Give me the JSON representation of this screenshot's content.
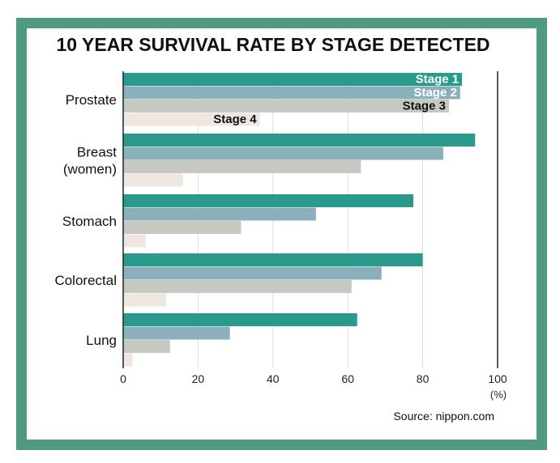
{
  "colors": {
    "border": "#4f9a80",
    "stage1": "#2a9a8c",
    "stage2": "#8ab0bb",
    "stage3": "#c6c9c1",
    "stage4": "#efe7df",
    "axis": "#222222",
    "grid": "#dddddd"
  },
  "chart_data": {
    "type": "bar",
    "orientation": "horizontal",
    "title": "10 YEAR SURVIVAL RATE BY STAGE DETECTED",
    "categories": [
      {
        "lines": [
          "Prostate"
        ]
      },
      {
        "lines": [
          "Breast",
          "(women)"
        ]
      },
      {
        "lines": [
          "Stomach"
        ]
      },
      {
        "lines": [
          "Colorectal"
        ]
      },
      {
        "lines": [
          "Lung"
        ]
      }
    ],
    "series": [
      {
        "name": "Stage 1",
        "values": [
          90.5,
          94.0,
          77.5,
          80.0,
          62.5
        ]
      },
      {
        "name": "Stage 2",
        "values": [
          90.0,
          85.5,
          51.5,
          69.0,
          28.5
        ]
      },
      {
        "name": "Stage 3",
        "values": [
          87.0,
          63.5,
          31.5,
          61.0,
          12.5
        ]
      },
      {
        "name": "Stage 4",
        "values": [
          36.5,
          16.0,
          6.0,
          11.5,
          2.5
        ]
      }
    ],
    "series_labels": [
      "Stage 1",
      "Stage 2",
      "Stage 3",
      "Stage 4"
    ],
    "xlim": [
      0,
      100
    ],
    "xticks": [
      0,
      20,
      40,
      60,
      80,
      100
    ],
    "xunit": "(%)",
    "source": "Source: nippon.com"
  }
}
